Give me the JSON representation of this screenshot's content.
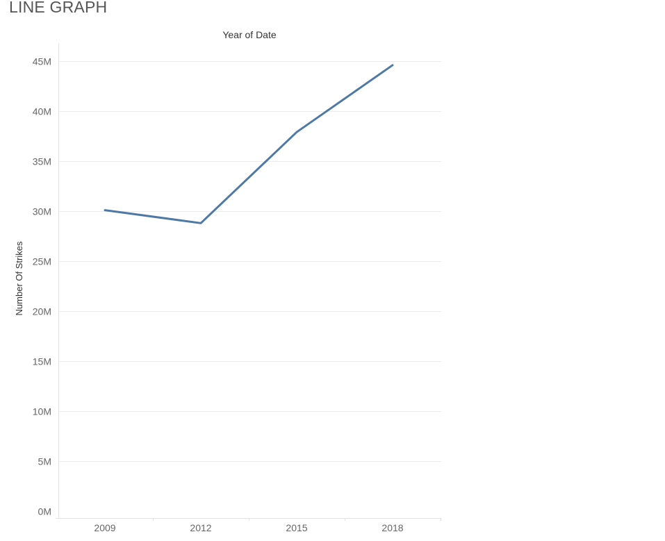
{
  "sheet": {
    "title": "LINE GRAPH"
  },
  "chart_data": {
    "type": "line",
    "title": "LINE GRAPH",
    "column_header": "Year of Date",
    "xlabel": "",
    "ylabel": "Number Of Strikes",
    "x": [
      "2009",
      "2012",
      "2015",
      "2018"
    ],
    "series": [
      {
        "values": [
          30100000,
          28800000,
          37900000,
          44600000
        ],
        "color": "#4e79a7"
      }
    ],
    "ylim": [
      0,
      45000000
    ],
    "y_ticks": [
      0,
      5000000,
      10000000,
      15000000,
      20000000,
      25000000,
      30000000,
      35000000,
      40000000,
      45000000
    ],
    "y_tick_labels": [
      "0M",
      "5M",
      "10M",
      "15M",
      "20M",
      "25M",
      "30M",
      "35M",
      "40M",
      "45M"
    ],
    "grid": true,
    "legend": "none"
  }
}
